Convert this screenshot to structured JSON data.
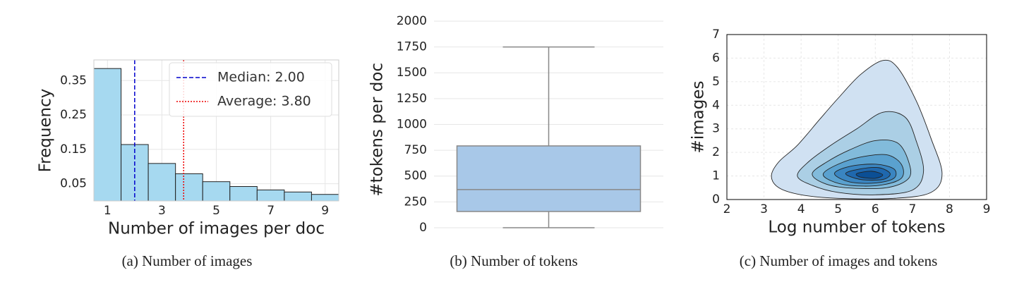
{
  "chart_data": [
    {
      "type": "histogram",
      "caption": "(a) Number of images",
      "xlabel": "Number of images per doc",
      "ylabel": "Frequency",
      "bins": [
        0.5,
        1.5,
        2.5,
        3.5,
        4.5,
        5.5,
        6.5,
        7.5,
        8.5,
        9.5
      ],
      "values": [
        0.385,
        0.164,
        0.109,
        0.079,
        0.056,
        0.042,
        0.032,
        0.026,
        0.019
      ],
      "color": "#a6d9f0",
      "xlim": [
        0.5,
        9.5
      ],
      "xticks": [
        1,
        3,
        5,
        7,
        9
      ],
      "ylim": [
        0,
        0.41
      ],
      "yticks": [
        0.05,
        0.15,
        0.25,
        0.35
      ],
      "grid": true,
      "lines": [
        {
          "name": "Median: 2.00",
          "value": 2,
          "color": "#0000cc",
          "style": "dashed"
        },
        {
          "name": "Average: 3.80",
          "value": 3.8,
          "color": "#ee0000",
          "style": "dotted"
        }
      ],
      "legend": "upper right"
    },
    {
      "type": "box",
      "caption": "(b) Number of tokens",
      "ylabel": "#tokens per doc",
      "boxes": [
        {
          "whislo": 0,
          "q1": 157,
          "median": 369,
          "q3": 792,
          "whishi": 1750
        }
      ],
      "color": "#a8c8e8",
      "ylim": [
        -100,
        2000
      ],
      "yticks": [
        0,
        250,
        500,
        750,
        1000,
        1250,
        1500,
        1750,
        2000
      ],
      "grid": true
    },
    {
      "type": "contour",
      "caption": "(c) Number of images and tokens",
      "xlabel": "Log number of tokens",
      "ylabel": "#images",
      "xlim": [
        2,
        9
      ],
      "xticks": [
        2,
        3,
        4,
        5,
        6,
        7,
        8,
        9
      ],
      "ylim": [
        0,
        7
      ],
      "yticks": [
        0,
        1,
        2,
        3,
        4,
        5,
        6,
        7
      ],
      "grid": true,
      "contours": [
        {
          "color": "#d0e1f2",
          "x": [
            3.2,
            3.4,
            3.9,
            4.5,
            5.0,
            5.6,
            6.2,
            6.6,
            7.1,
            7.5,
            7.8,
            7.5,
            6.5,
            5.0,
            4.0,
            3.4
          ],
          "y": [
            1.0,
            1.6,
            2.3,
            3.4,
            4.3,
            5.3,
            5.9,
            5.6,
            4.2,
            2.6,
            1.1,
            0.3,
            0.05,
            0.05,
            0.2,
            0.5
          ]
        },
        {
          "color": "#abcfe5",
          "x": [
            3.9,
            4.2,
            4.8,
            5.5,
            6.2,
            6.8,
            7.1,
            7.3,
            7.0,
            6.0,
            5.0,
            4.3
          ],
          "y": [
            1.0,
            1.6,
            2.3,
            3.0,
            3.7,
            3.5,
            2.5,
            1.2,
            0.4,
            0.2,
            0.3,
            0.6
          ]
        },
        {
          "color": "#82bbdb",
          "x": [
            4.3,
            4.7,
            5.3,
            6.0,
            6.6,
            6.9,
            6.9,
            6.3,
            5.2,
            4.6
          ],
          "y": [
            1.1,
            1.6,
            2.1,
            2.5,
            2.4,
            1.6,
            0.9,
            0.5,
            0.5,
            0.7
          ]
        },
        {
          "color": "#5aa1cf",
          "x": [
            4.6,
            5.0,
            5.6,
            6.3,
            6.7,
            6.7,
            6.1,
            5.3,
            4.8
          ],
          "y": [
            1.1,
            1.5,
            1.8,
            1.9,
            1.5,
            0.9,
            0.6,
            0.6,
            0.8
          ]
        },
        {
          "color": "#3a85c1",
          "x": [
            4.9,
            5.3,
            6.0,
            6.5,
            6.5,
            6.0,
            5.3
          ],
          "y": [
            1.1,
            1.4,
            1.5,
            1.3,
            0.9,
            0.7,
            0.75
          ]
        },
        {
          "color": "#1f68ae",
          "x": [
            5.2,
            5.6,
            6.1,
            6.4,
            6.2,
            5.6
          ],
          "y": [
            1.1,
            1.3,
            1.35,
            1.1,
            0.85,
            0.85
          ]
        },
        {
          "color": "#0b4f95",
          "x": [
            5.5,
            5.9,
            6.2,
            6.0,
            5.6
          ],
          "y": [
            1.1,
            1.2,
            1.05,
            0.9,
            0.95
          ]
        }
      ]
    }
  ]
}
